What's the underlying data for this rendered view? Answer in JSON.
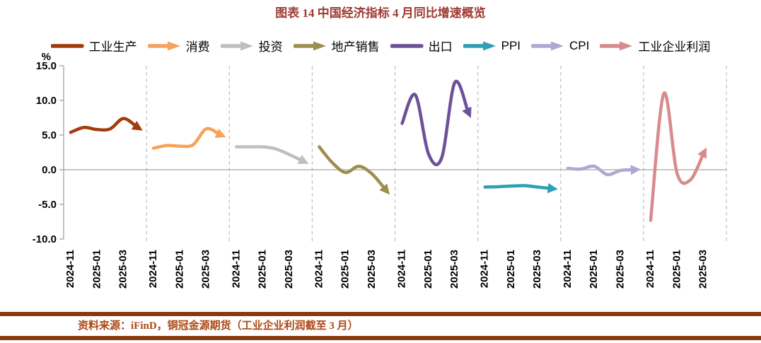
{
  "title": "图表 14 中国经济指标 4 月同比增速概览",
  "colors": {
    "title_text": "#9E3A31",
    "footer_bar": "#8A3A0A",
    "footer_text": "#AC4713",
    "axis_line": "#A8A8A8",
    "grid_dash": "#C3C3C3",
    "tick_label": "#000000"
  },
  "legend": {
    "items": [
      {
        "label": "工业生产",
        "color": "#A33B0B",
        "arrow": false
      },
      {
        "label": "消费",
        "color": "#F7A25B",
        "arrow": true
      },
      {
        "label": "投资",
        "color": "#BFBFBF",
        "arrow": true
      },
      {
        "label": "地产销售",
        "color": "#9E8E4F",
        "arrow": true
      },
      {
        "label": "出口",
        "color": "#6D5199",
        "arrow": false
      },
      {
        "label": "PPI",
        "color": "#2E9FB4",
        "arrow": true
      },
      {
        "label": "CPI",
        "color": "#AFA8D3",
        "arrow": true
      },
      {
        "label": "工业企业利润",
        "color": "#D88B8D",
        "arrow": true
      }
    ]
  },
  "chart_data": {
    "type": "line",
    "title": "图表 14 中国经济指标 4 月同比增速概览",
    "unit": "%",
    "ylim": [
      -10,
      15
    ],
    "ytick_values": [
      15,
      10,
      5,
      0,
      -5,
      -10
    ],
    "ytick_labels": [
      "15.0",
      "10.0",
      "5.0",
      "0.0",
      "-5.0",
      "-10.0"
    ],
    "panel_tick_labels": [
      "2024-11",
      "2025-01",
      "2025-03"
    ],
    "grid": "dashed vertical dividers between panels, solid zero line",
    "series": [
      {
        "name": "工业生产",
        "color": "#A33B0B",
        "months": [
          "2024-11",
          "2024-12",
          "2025-01",
          "2025-02",
          "2025-03",
          "2025-04"
        ],
        "values": [
          5.4,
          6.1,
          5.8,
          5.9,
          7.4,
          6.2
        ]
      },
      {
        "name": "消费",
        "color": "#F7A25B",
        "months": [
          "2024-11",
          "2024-12",
          "2025-01",
          "2025-02",
          "2025-03",
          "2025-04"
        ],
        "values": [
          3.1,
          3.5,
          3.4,
          3.6,
          5.9,
          5.1
        ]
      },
      {
        "name": "投资",
        "color": "#BFBFBF",
        "months": [
          "2024-11",
          "2024-12",
          "2025-01",
          "2025-02",
          "2025-03",
          "2025-04"
        ],
        "values": [
          3.3,
          3.3,
          3.3,
          3.0,
          2.2,
          1.3
        ]
      },
      {
        "name": "地产销售",
        "color": "#9E8E4F",
        "months": [
          "2024-11",
          "2024-12",
          "2025-01",
          "2025-02",
          "2025-03",
          "2025-04"
        ],
        "values": [
          3.3,
          1.0,
          -0.4,
          0.5,
          -0.6,
          -2.8
        ]
      },
      {
        "name": "出口",
        "color": "#6D5199",
        "months": [
          "2024-11",
          "2024-12",
          "2025-01",
          "2025-02",
          "2025-03",
          "2025-04"
        ],
        "values": [
          6.7,
          10.8,
          2.3,
          1.7,
          12.6,
          8.4
        ]
      },
      {
        "name": "PPI",
        "color": "#2E9FB4",
        "months": [
          "2024-11",
          "2024-12",
          "2025-01",
          "2025-02",
          "2025-03",
          "2025-04"
        ],
        "values": [
          -2.5,
          -2.45,
          -2.35,
          -2.3,
          -2.5,
          -2.7
        ]
      },
      {
        "name": "CPI",
        "color": "#AFA8D3",
        "months": [
          "2024-11",
          "2024-12",
          "2025-01",
          "2025-02",
          "2025-03",
          "2025-04"
        ],
        "values": [
          0.2,
          0.1,
          0.5,
          -0.7,
          -0.1,
          0.0
        ]
      },
      {
        "name": "工业企业利润",
        "color": "#D88B8D",
        "months": [
          "2024-11",
          "2024-12",
          "2025-01",
          "2025-02",
          "2025-03"
        ],
        "values": [
          -7.3,
          11.0,
          -0.5,
          -1.5,
          2.3
        ]
      }
    ]
  },
  "footer": {
    "source": "资料来源：iFinD，铜冠金源期货（工业企业利润截至 3 月）"
  }
}
